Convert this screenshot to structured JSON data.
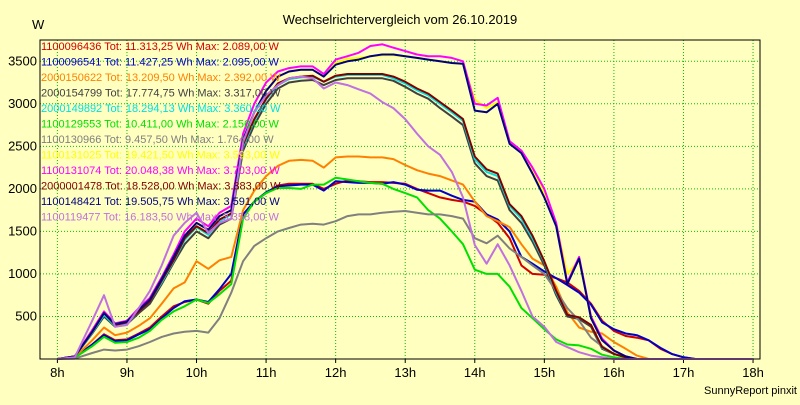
{
  "chart_data": {
    "type": "line",
    "title": "Wechselrichtervergleich vom 26.10.2019",
    "ylabel": "W",
    "footer": "SunnyReport pinxit",
    "xlim": [
      7.75,
      18.1
    ],
    "ylim": [
      0,
      3750
    ],
    "x_ticks": [
      {
        "value": 8,
        "label": "8h"
      },
      {
        "value": 9,
        "label": "9h"
      },
      {
        "value": 10,
        "label": "10h"
      },
      {
        "value": 11,
        "label": "11h"
      },
      {
        "value": 12,
        "label": "12h"
      },
      {
        "value": 13,
        "label": "13h"
      },
      {
        "value": 14,
        "label": "14h"
      },
      {
        "value": 15,
        "label": "15h"
      },
      {
        "value": 16,
        "label": "16h"
      },
      {
        "value": 17,
        "label": "17h"
      },
      {
        "value": 18,
        "label": "18h"
      }
    ],
    "y_ticks": [
      {
        "value": 500,
        "label": "500"
      },
      {
        "value": 1000,
        "label": "1000"
      },
      {
        "value": 1500,
        "label": "1500"
      },
      {
        "value": 2000,
        "label": "2000"
      },
      {
        "value": 2500,
        "label": "2500"
      },
      {
        "value": 3000,
        "label": "3000"
      },
      {
        "value": 3500,
        "label": "3500"
      }
    ],
    "grid": true,
    "legend_position": "top-left",
    "x": [
      8.0,
      8.25,
      8.5,
      8.67,
      8.83,
      9.0,
      9.17,
      9.33,
      9.5,
      9.67,
      9.83,
      10.0,
      10.17,
      10.33,
      10.5,
      10.67,
      10.83,
      11.0,
      11.17,
      11.33,
      11.5,
      11.67,
      11.83,
      12.0,
      12.17,
      12.33,
      12.5,
      12.67,
      12.83,
      13.0,
      13.17,
      13.33,
      13.5,
      13.67,
      13.83,
      14.0,
      14.17,
      14.33,
      14.5,
      14.67,
      14.83,
      15.0,
      15.17,
      15.33,
      15.5,
      15.67,
      15.83,
      16.0,
      16.17,
      16.33,
      16.5,
      16.67,
      16.83,
      17.0,
      17.17,
      17.33,
      17.5,
      17.67,
      17.83,
      18.0
    ],
    "series": [
      {
        "name": "1100096436 Tot: 11.313,25 Wh Max: 2.089,00 W",
        "color": "#d00000",
        "values": [
          0,
          20,
          170,
          290,
          220,
          230,
          300,
          370,
          500,
          620,
          670,
          700,
          650,
          800,
          920,
          1700,
          1850,
          1950,
          2040,
          2060,
          2060,
          2060,
          2000,
          2060,
          2100,
          2090,
          2080,
          2080,
          2070,
          2060,
          2000,
          1950,
          1900,
          1870,
          1850,
          1800,
          1700,
          1600,
          1420,
          1100,
          1000,
          990,
          950,
          900,
          800,
          650,
          450,
          330,
          270,
          250,
          220,
          120,
          60,
          20,
          0,
          0,
          0,
          0,
          0,
          0
        ]
      },
      {
        "name": "1100096541 Tot: 11.427,25 Wh Max: 2.095,00 W",
        "color": "#0000c8",
        "values": [
          0,
          20,
          170,
          280,
          210,
          220,
          290,
          350,
          480,
          600,
          680,
          700,
          670,
          820,
          1000,
          1700,
          1850,
          1960,
          2030,
          2040,
          2050,
          2050,
          1980,
          2090,
          2080,
          2070,
          2070,
          2060,
          2080,
          2050,
          1990,
          1980,
          1980,
          1920,
          1870,
          1850,
          1700,
          1640,
          1500,
          1200,
          1120,
          1030,
          950,
          870,
          780,
          640,
          430,
          350,
          300,
          280,
          220,
          130,
          60,
          20,
          0,
          0,
          0,
          0,
          0,
          0
        ]
      },
      {
        "name": "2000150622 Tot: 13.209,50 Wh Max: 2.392,00 W",
        "color": "#ff8000",
        "values": [
          0,
          20,
          220,
          370,
          280,
          310,
          390,
          480,
          650,
          830,
          900,
          1150,
          1060,
          1160,
          1200,
          1750,
          1980,
          2150,
          2270,
          2330,
          2340,
          2330,
          2250,
          2370,
          2380,
          2380,
          2370,
          2370,
          2350,
          2280,
          2220,
          2180,
          2150,
          2100,
          2050,
          1850,
          1680,
          1620,
          1550,
          1350,
          1180,
          1100,
          850,
          550,
          370,
          320,
          300,
          200,
          120,
          40,
          0,
          0,
          0,
          0,
          0,
          0,
          0,
          0,
          0,
          0
        ]
      },
      {
        "name": "2000154799 Tot: 17.774,75 Wh Max: 3.317,00 W",
        "color": "#404040",
        "values": [
          0,
          30,
          300,
          500,
          380,
          410,
          540,
          650,
          880,
          1130,
          1350,
          1500,
          1420,
          1580,
          1650,
          2450,
          2750,
          3000,
          3180,
          3250,
          3270,
          3280,
          3220,
          3280,
          3300,
          3300,
          3300,
          3300,
          3270,
          3200,
          3120,
          3060,
          2950,
          2850,
          2750,
          2300,
          2150,
          2100,
          1750,
          1600,
          1380,
          1100,
          750,
          500,
          470,
          380,
          120,
          60,
          20,
          0,
          0,
          0,
          0,
          0,
          0,
          0,
          0,
          0,
          0,
          0
        ]
      },
      {
        "name": "2000149892 Tot: 18.294,13 Wh Max: 3.360,00 W",
        "color": "#00e0e0",
        "values": [
          0,
          30,
          310,
          520,
          390,
          420,
          560,
          680,
          900,
          1150,
          1400,
          1550,
          1460,
          1620,
          1700,
          2500,
          2800,
          3050,
          3220,
          3290,
          3310,
          3320,
          3260,
          3320,
          3340,
          3340,
          3340,
          3340,
          3300,
          3240,
          3160,
          3100,
          3000,
          2900,
          2800,
          2350,
          2200,
          2150,
          1800,
          1650,
          1420,
          1140,
          780,
          520,
          490,
          400,
          130,
          60,
          20,
          0,
          0,
          0,
          0,
          0,
          0,
          0,
          0,
          0,
          0,
          0
        ]
      },
      {
        "name": "1100129553 Tot: 10.411,00 Wh Max: 2.156,00 W",
        "color": "#00e000",
        "values": [
          0,
          15,
          150,
          260,
          190,
          200,
          250,
          330,
          460,
          560,
          620,
          700,
          660,
          760,
          880,
          1650,
          1850,
          1950,
          2010,
          2010,
          2000,
          2050,
          2050,
          2130,
          2110,
          2090,
          2070,
          2060,
          2000,
          1950,
          1900,
          1750,
          1650,
          1500,
          1350,
          1050,
          1000,
          1000,
          850,
          600,
          480,
          350,
          230,
          170,
          160,
          120,
          50,
          20,
          0,
          0,
          0,
          0,
          0,
          0,
          0,
          0,
          0,
          0,
          0,
          0
        ]
      },
      {
        "name": "1100130966 Tot: 9.457,50 Wh Max: 1.764,00 W",
        "color": "#808080",
        "values": [
          0,
          5,
          70,
          110,
          100,
          110,
          150,
          200,
          260,
          300,
          320,
          330,
          310,
          480,
          780,
          1150,
          1330,
          1420,
          1500,
          1540,
          1580,
          1590,
          1580,
          1620,
          1680,
          1700,
          1700,
          1720,
          1730,
          1740,
          1720,
          1700,
          1700,
          1680,
          1650,
          1420,
          1360,
          1450,
          1300,
          1200,
          1100,
          1000,
          800,
          600,
          450,
          250,
          150,
          60,
          20,
          0,
          0,
          0,
          0,
          0,
          0,
          0,
          0,
          0,
          0,
          0
        ]
      },
      {
        "name": "1100131025 Tot: 19.421,50 Wh Max: 3.593,00 W",
        "color": "#ffff00",
        "values": [
          0,
          30,
          320,
          540,
          410,
          440,
          580,
          700,
          940,
          1200,
          1450,
          1600,
          1520,
          1680,
          1750,
          2580,
          2900,
          3150,
          3320,
          3380,
          3400,
          3400,
          3320,
          3480,
          3530,
          3540,
          3560,
          3570,
          3570,
          3560,
          3540,
          3520,
          3500,
          3480,
          3470,
          3050,
          2950,
          3020,
          2560,
          2420,
          2220,
          1950,
          1580,
          1000,
          1160,
          500,
          230,
          100,
          30,
          0,
          0,
          0,
          0,
          0,
          0,
          0,
          0,
          0,
          0,
          0
        ]
      },
      {
        "name": "1100131074 Tot: 20.048,38 Wh Max: 3.703,00 W",
        "color": "#ff00ff",
        "values": [
          0,
          30,
          340,
          560,
          420,
          450,
          600,
          720,
          960,
          1230,
          1500,
          1650,
          1560,
          1720,
          1800,
          2650,
          3000,
          3250,
          3380,
          3420,
          3440,
          3440,
          3350,
          3520,
          3560,
          3600,
          3680,
          3700,
          3660,
          3620,
          3580,
          3560,
          3560,
          3540,
          3500,
          3000,
          2980,
          3070,
          2560,
          2450,
          2250,
          2000,
          1600,
          900,
          1200,
          500,
          240,
          100,
          30,
          0,
          0,
          0,
          0,
          0,
          0,
          0,
          0,
          0,
          0,
          0
        ]
      },
      {
        "name": "2000001478 Tot: 18.528,00 Wh Max: 3.383,00 W",
        "color": "#800000",
        "values": [
          0,
          30,
          320,
          540,
          400,
          430,
          560,
          680,
          920,
          1160,
          1420,
          1560,
          1480,
          1640,
          1710,
          2520,
          2820,
          3060,
          3240,
          3300,
          3320,
          3330,
          3260,
          3330,
          3350,
          3350,
          3350,
          3350,
          3320,
          3260,
          3180,
          3120,
          3020,
          2920,
          2820,
          2380,
          2230,
          2180,
          1820,
          1680,
          1450,
          1150,
          800,
          520,
          490,
          400,
          140,
          60,
          20,
          0,
          0,
          0,
          0,
          0,
          0,
          0,
          0,
          0,
          0,
          0
        ]
      },
      {
        "name": "1100148421 Tot: 19.505,75 Wh Max: 3.591,00 W",
        "color": "#000080",
        "values": [
          0,
          30,
          320,
          540,
          410,
          440,
          580,
          700,
          940,
          1200,
          1450,
          1600,
          1520,
          1680,
          1750,
          2580,
          2900,
          3150,
          3320,
          3380,
          3400,
          3400,
          3320,
          3460,
          3500,
          3520,
          3560,
          3580,
          3580,
          3560,
          3540,
          3520,
          3500,
          3480,
          3470,
          2920,
          2900,
          3000,
          2530,
          2420,
          2180,
          1900,
          1560,
          880,
          1180,
          480,
          220,
          100,
          30,
          0,
          0,
          0,
          0,
          0,
          0,
          0,
          0,
          0,
          0,
          0
        ]
      },
      {
        "name": "1100119477 Tot: 16.183,50 Wh Max: 3.358,00 W",
        "color": "#c070e0",
        "values": [
          0,
          20,
          450,
          750,
          380,
          400,
          600,
          800,
          1100,
          1450,
          1600,
          1720,
          1480,
          1600,
          1650,
          2550,
          2900,
          3100,
          3220,
          3300,
          3320,
          3300,
          3180,
          3250,
          3220,
          3170,
          3120,
          3020,
          2950,
          2820,
          2650,
          2500,
          2400,
          2200,
          1900,
          1340,
          1120,
          1350,
          1100,
          800,
          500,
          380,
          200,
          140,
          80,
          40,
          20,
          0,
          0,
          0,
          0,
          0,
          0,
          0,
          0,
          0,
          0,
          0,
          0,
          0
        ]
      }
    ]
  }
}
